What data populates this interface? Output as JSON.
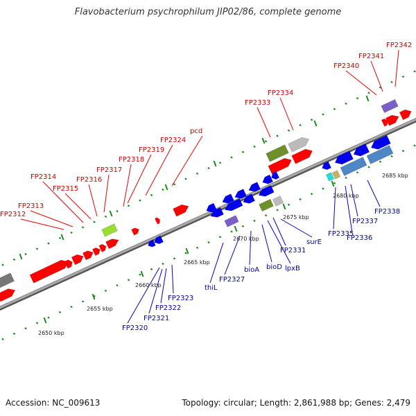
{
  "title": "Flavobacterium psychrophilum JIP02/86, complete genome",
  "footer": {
    "accession": "Accession: NC_009613",
    "summary": "Topology: circular; Length: 2,861,988 bp; Genes: 2,479"
  },
  "colors": {
    "forward": "#ff0000",
    "reverse": "#0000ee",
    "backbone": "#808080",
    "tick_dots": "#1a8a1a",
    "olive": "#6e8f2a",
    "grey": "#bbbbbb",
    "purple": "#7b5fc8",
    "steel": "#4f86c6",
    "lime": "#99dd33"
  },
  "scale": {
    "ticks": [
      "2650 kbp",
      "2655 kbp",
      "2660 kbp",
      "2665 kbp",
      "2670 kbp",
      "2675 kbp",
      "2680 kbp",
      "2685 kbp"
    ]
  },
  "forward_labels": [
    "FP2312",
    "FP2313",
    "FP2314",
    "FP2315",
    "FP2316",
    "FP2317",
    "FP2318",
    "FP2319",
    "FP2324",
    "pcd",
    "FP2333",
    "FP2334",
    "FP2340",
    "FP2341",
    "FP2342"
  ],
  "reverse_labels": [
    "FP2320",
    "FP2321",
    "FP2322",
    "FP2323",
    "thiL",
    "FP2327",
    "bioA",
    "bioD",
    "lpxB",
    "FP2331",
    "surE",
    "FP2335",
    "FP2336",
    "FP2337",
    "FP2338"
  ]
}
